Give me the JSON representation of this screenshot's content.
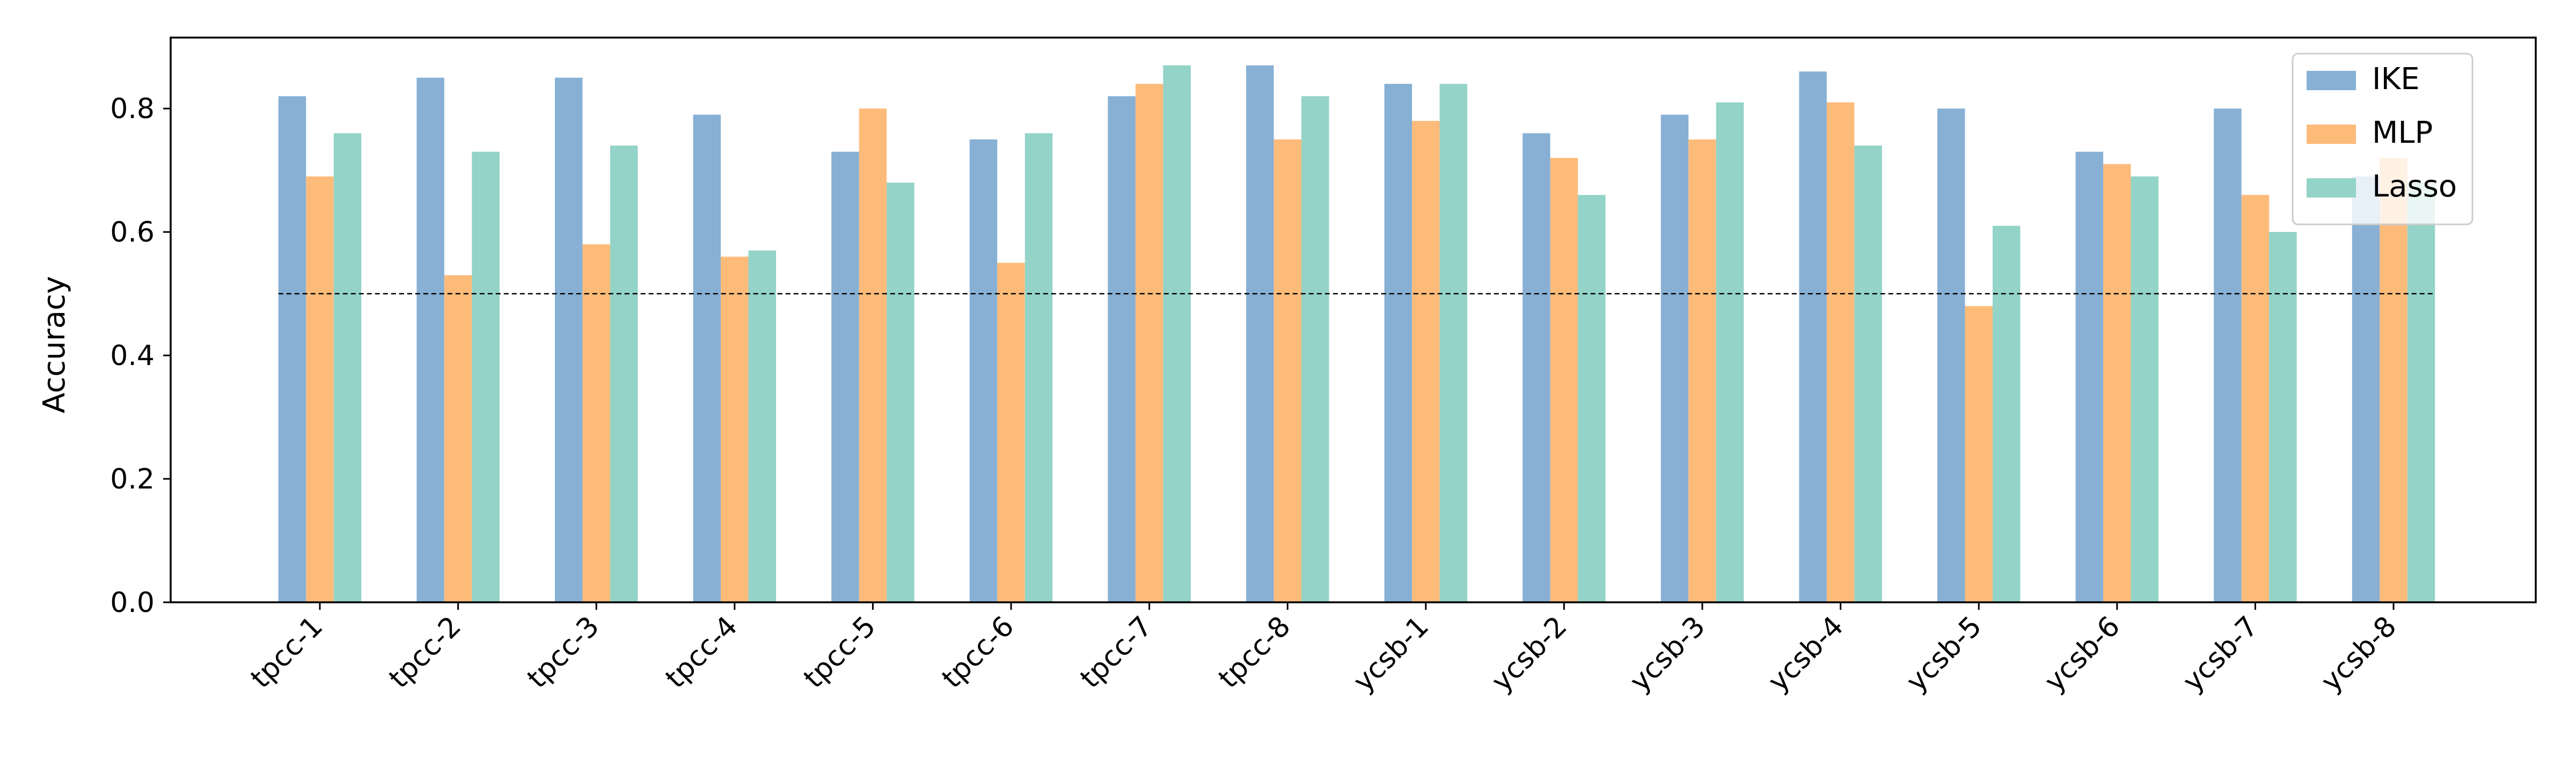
{
  "chart_data": {
    "type": "bar",
    "title": "",
    "xlabel": "",
    "ylabel": "Accuracy",
    "categories": [
      "tpcc-1",
      "tpcc-2",
      "tpcc-3",
      "tpcc-4",
      "tpcc-5",
      "tpcc-6",
      "tpcc-7",
      "tpcc-8",
      "ycsb-1",
      "ycsb-2",
      "ycsb-3",
      "ycsb-4",
      "ycsb-5",
      "ycsb-6",
      "ycsb-7",
      "ycsb-8"
    ],
    "series": [
      {
        "name": "IKE",
        "color": "#87b0d4",
        "values": [
          0.82,
          0.85,
          0.85,
          0.79,
          0.73,
          0.75,
          0.82,
          0.87,
          0.84,
          0.76,
          0.79,
          0.86,
          0.8,
          0.73,
          0.8,
          0.69
        ]
      },
      {
        "name": "MLP",
        "color": "#fdbb7a",
        "values": [
          0.69,
          0.53,
          0.58,
          0.56,
          0.8,
          0.55,
          0.84,
          0.75,
          0.78,
          0.72,
          0.75,
          0.81,
          0.48,
          0.71,
          0.66,
          0.72
        ]
      },
      {
        "name": "Lasso",
        "color": "#93d3c8",
        "values": [
          0.76,
          0.73,
          0.74,
          0.57,
          0.68,
          0.76,
          0.87,
          0.82,
          0.84,
          0.66,
          0.81,
          0.74,
          0.61,
          0.69,
          0.6,
          0.68
        ]
      }
    ],
    "ylim": [
      0,
      0.915
    ],
    "yticks": [
      "0.0",
      "0.2",
      "0.4",
      "0.6",
      "0.8"
    ],
    "reference_line": 0.5,
    "grid": false,
    "legend_position": "top-right"
  }
}
